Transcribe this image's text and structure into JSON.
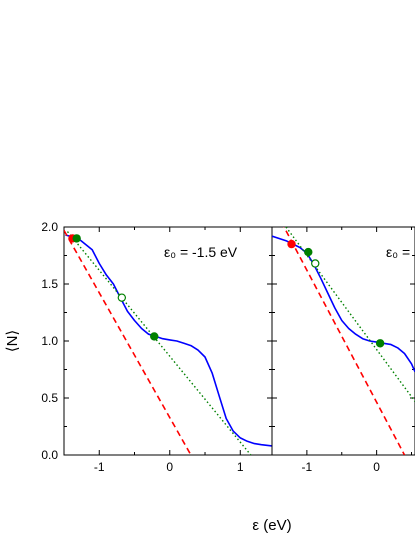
{
  "chart_data": {
    "type": "line",
    "ylabel": "⟨N⟩",
    "xlabel": "ε (eV)",
    "ylim": [
      0,
      2
    ],
    "yticks": [
      "0.0",
      "0.5",
      "1.0",
      "1.5",
      "2.0"
    ],
    "panels": [
      {
        "annotation": "ε₀ = -1.5 eV",
        "xlim": [
          -1.5,
          1.45
        ],
        "xticks": [
          "-1",
          "0",
          "1"
        ],
        "series": [
          {
            "style": "solid",
            "color": "#0000ff",
            "points": [
              [
                -1.48,
                1.93
              ],
              [
                -1.3,
                1.9
              ],
              [
                -1.1,
                1.8
              ],
              [
                -1.0,
                1.68
              ],
              [
                -0.9,
                1.58
              ],
              [
                -0.8,
                1.5
              ],
              [
                -0.7,
                1.38
              ],
              [
                -0.6,
                1.26
              ],
              [
                -0.5,
                1.18
              ],
              [
                -0.4,
                1.11
              ],
              [
                -0.3,
                1.06
              ],
              [
                -0.2,
                1.04
              ],
              [
                -0.1,
                1.02
              ],
              [
                0.0,
                1.01
              ],
              [
                0.1,
                1.0
              ],
              [
                0.2,
                0.98
              ],
              [
                0.3,
                0.96
              ],
              [
                0.4,
                0.92
              ],
              [
                0.5,
                0.86
              ],
              [
                0.6,
                0.72
              ],
              [
                0.7,
                0.52
              ],
              [
                0.8,
                0.32
              ],
              [
                0.9,
                0.21
              ],
              [
                1.0,
                0.15
              ],
              [
                1.1,
                0.12
              ],
              [
                1.2,
                0.1
              ],
              [
                1.3,
                0.09
              ],
              [
                1.45,
                0.08
              ]
            ]
          },
          {
            "style": "dashed",
            "color": "#ff0000",
            "points": [
              [
                -1.5,
                1.97
              ],
              [
                0.3,
                0.0
              ]
            ]
          },
          {
            "style": "dotted",
            "color": "#008000",
            "points": [
              [
                -1.45,
                1.96
              ],
              [
                1.15,
                0.0
              ]
            ]
          }
        ],
        "markers": [
          {
            "x": -1.38,
            "y": 1.9,
            "color": "#ff0000",
            "filled": true
          },
          {
            "x": -1.32,
            "y": 1.9,
            "color": "#008000",
            "filled": true
          },
          {
            "x": -0.68,
            "y": 1.38,
            "color": "#008000",
            "filled": false
          },
          {
            "x": -0.22,
            "y": 1.04,
            "color": "#008000",
            "filled": true
          }
        ]
      },
      {
        "annotation": "ε₀ =",
        "xlim": [
          -1.5,
          0.55
        ],
        "xticks": [
          "-1",
          "0"
        ],
        "series": [
          {
            "style": "solid",
            "color": "#0000ff",
            "points": [
              [
                -1.5,
                1.92
              ],
              [
                -1.3,
                1.88
              ],
              [
                -1.1,
                1.82
              ],
              [
                -1.0,
                1.77
              ],
              [
                -0.9,
                1.67
              ],
              [
                -0.8,
                1.55
              ],
              [
                -0.7,
                1.42
              ],
              [
                -0.6,
                1.29
              ],
              [
                -0.5,
                1.18
              ],
              [
                -0.4,
                1.11
              ],
              [
                -0.3,
                1.06
              ],
              [
                -0.2,
                1.02
              ],
              [
                -0.1,
                1.0
              ],
              [
                0.0,
                0.99
              ],
              [
                0.1,
                0.98
              ],
              [
                0.2,
                0.97
              ],
              [
                0.3,
                0.94
              ],
              [
                0.4,
                0.89
              ],
              [
                0.5,
                0.8
              ],
              [
                0.55,
                0.73
              ]
            ]
          },
          {
            "style": "dashed",
            "color": "#ff0000",
            "points": [
              [
                -1.5,
                2.2
              ],
              [
                0.4,
                0.0
              ]
            ]
          },
          {
            "style": "dotted",
            "color": "#008000",
            "points": [
              [
                -1.3,
                2.0
              ],
              [
                0.55,
                0.47
              ]
            ]
          }
        ],
        "markers": [
          {
            "x": -1.22,
            "y": 1.85,
            "color": "#ff0000",
            "filled": true
          },
          {
            "x": -0.98,
            "y": 1.78,
            "color": "#008000",
            "filled": true
          },
          {
            "x": -0.88,
            "y": 1.68,
            "color": "#008000",
            "filled": false
          },
          {
            "x": 0.05,
            "y": 0.98,
            "color": "#008000",
            "filled": true
          }
        ]
      }
    ]
  }
}
